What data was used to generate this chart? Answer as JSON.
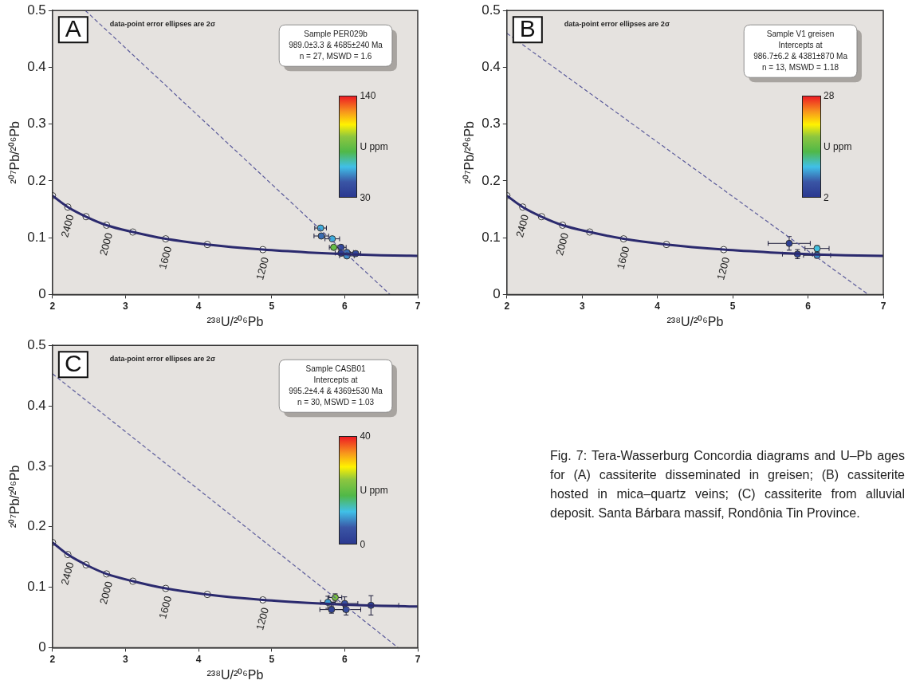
{
  "chart_data": [
    {
      "type": "scatter",
      "xlabel": "²³⁸U/²⁰⁶Pb",
      "ylabel": "²⁰⁷Pb/²⁰⁶Pb",
      "xlim": [
        2,
        7
      ],
      "ylim": [
        0,
        0.5
      ],
      "xticks": [
        2,
        3,
        4,
        5,
        6,
        7
      ],
      "yticks": [
        0,
        0.1,
        0.2,
        0.3,
        0.4,
        0.5
      ],
      "grid": false,
      "legend": false,
      "clabel": "U ppm",
      "annotations": [
        "A",
        "data-point error ellipses are 2σ",
        "Sample PER029b",
        "989.0±3.3 & 4685±240 Ma",
        "n = 27, MSWD = 1.6",
        "140",
        "30",
        {
          "text": "2400",
          "x": 2.21,
          "y": 0.154
        },
        {
          "text": "2000",
          "x": 2.74,
          "y": 0.122
        },
        {
          "text": "1600",
          "x": 3.55,
          "y": 0.098
        },
        {
          "text": "1200",
          "x": 4.88,
          "y": 0.079
        }
      ],
      "series": [
        {
          "type": "line",
          "color": "#2b2a6e",
          "marker": "none",
          "line_style": "solid",
          "x": [
            2,
            2.21,
            2.46,
            2.74,
            3.1,
            3.55,
            4.12,
            4.88,
            5.5,
            6,
            6.5,
            7
          ],
          "values": [
            0.174,
            0.154,
            0.137,
            0.122,
            0.11,
            0.098,
            0.088,
            0.079,
            0.074,
            0.071,
            0.069,
            0.068
          ]
        },
        {
          "type": "line",
          "color": "#5a5a9a",
          "marker": "none",
          "line_style": "dashed",
          "x": [
            2.45,
            6.62
          ],
          "values": [
            0.5,
            0
          ]
        },
        {
          "type": "scatter",
          "marker": "circle",
          "x": [
            5.67,
            5.68,
            5.83,
            5.85,
            5.95,
            5.95,
            6.03,
            6.15,
            6.03
          ],
          "values": [
            0.117,
            0.103,
            0.098,
            0.083,
            0.083,
            0.073,
            0.074,
            0.072,
            0.068
          ],
          "xerrors": [
            0.08,
            0.1,
            0.1,
            0.06,
            0.07,
            0.08,
            0.09,
            0.07,
            0.1
          ],
          "colors": [
            "#3faddc",
            "#3b6cb3",
            "#3faddc",
            "#64bd45",
            "#32479a",
            "#2d3c93",
            "#3b6cb3",
            "#344a9d",
            "#3d8cc7"
          ]
        },
        {
          "type": "scatter",
          "color": "#ffffff",
          "marker": "circle",
          "x": [
            2,
            2.21,
            2.46,
            2.74,
            3.1,
            3.55,
            4.12,
            4.88
          ],
          "values": [
            0.174,
            0.154,
            0.137,
            0.122,
            0.11,
            0.098,
            0.088,
            0.079
          ]
        }
      ]
    },
    {
      "type": "scatter",
      "xlabel": "²³⁸U/²⁰⁶Pb",
      "ylabel": "²⁰⁷Pb/²⁰⁶Pb",
      "xlim": [
        2,
        7
      ],
      "ylim": [
        0,
        0.5
      ],
      "xticks": [
        2,
        3,
        4,
        5,
        6,
        7
      ],
      "yticks": [
        0,
        0.1,
        0.2,
        0.3,
        0.4,
        0.5
      ],
      "grid": false,
      "legend": false,
      "clabel": "U ppm",
      "annotations": [
        "B",
        "data-point error ellipses are 2σ",
        "Sample V1 greisen",
        "Intercepts at",
        "986.7±6.2 & 4381±870 Ma",
        "n = 13, MSWD = 1.18",
        "28",
        "2",
        {
          "text": "2400",
          "x": 2.21,
          "y": 0.154
        },
        {
          "text": "2000",
          "x": 2.74,
          "y": 0.122
        },
        {
          "text": "1600",
          "x": 3.55,
          "y": 0.098
        },
        {
          "text": "1200",
          "x": 4.88,
          "y": 0.079
        }
      ],
      "series": [
        {
          "type": "line",
          "color": "#2b2a6e",
          "marker": "none",
          "line_style": "solid",
          "x": [
            2,
            2.21,
            2.46,
            2.74,
            3.1,
            3.55,
            4.12,
            4.88,
            5.5,
            6,
            6.5,
            7
          ],
          "values": [
            0.174,
            0.154,
            0.137,
            0.122,
            0.11,
            0.098,
            0.088,
            0.079,
            0.074,
            0.071,
            0.069,
            0.068
          ]
        },
        {
          "type": "line",
          "color": "#5a5a9a",
          "marker": "none",
          "line_style": "dashed",
          "x": [
            2,
            6.8
          ],
          "values": [
            0.46,
            0
          ]
        },
        {
          "type": "scatter",
          "marker": "circle",
          "x": [
            5.75,
            5.86,
            6.12,
            6.12
          ],
          "values": [
            0.09,
            0.071,
            0.081,
            0.069
          ],
          "xerrors": [
            0.28,
            0.2,
            0.16,
            0.18
          ],
          "errors": [
            0.012,
            0.008,
            0.005,
            0.005
          ],
          "colors": [
            "#2f4095",
            "#2f4095",
            "#41c0e0",
            "#3d8fc9"
          ]
        },
        {
          "type": "scatter",
          "color": "#ffffff",
          "marker": "circle",
          "x": [
            2,
            2.21,
            2.46,
            2.74,
            3.1,
            3.55,
            4.12,
            4.88
          ],
          "values": [
            0.174,
            0.154,
            0.137,
            0.122,
            0.11,
            0.098,
            0.088,
            0.079
          ]
        }
      ]
    },
    {
      "type": "scatter",
      "xlabel": "²³⁸U/²⁰⁶Pb",
      "ylabel": "²⁰⁷Pb/²⁰⁶Pb",
      "xlim": [
        2,
        7
      ],
      "ylim": [
        0,
        0.5
      ],
      "xticks": [
        2,
        3,
        4,
        5,
        6,
        7
      ],
      "yticks": [
        0,
        0.1,
        0.2,
        0.3,
        0.4,
        0.5
      ],
      "grid": false,
      "legend": false,
      "clabel": "U ppm",
      "annotations": [
        "C",
        "data-point error ellipses are 2σ",
        "Sample CASB01",
        "Intercepts at",
        "995.2±4.4 & 4369±530 Ma",
        "n = 30, MSWD = 1.03",
        "40",
        "0",
        {
          "text": "2400",
          "x": 2.21,
          "y": 0.154
        },
        {
          "text": "2000",
          "x": 2.74,
          "y": 0.122
        },
        {
          "text": "1600",
          "x": 3.55,
          "y": 0.098
        },
        {
          "text": "1200",
          "x": 4.88,
          "y": 0.079
        }
      ],
      "series": [
        {
          "type": "line",
          "color": "#2b2a6e",
          "marker": "none",
          "line_style": "solid",
          "x": [
            2,
            2.21,
            2.46,
            2.74,
            3.1,
            3.55,
            4.12,
            4.88,
            5.5,
            6,
            6.5,
            7
          ],
          "values": [
            0.174,
            0.154,
            0.137,
            0.122,
            0.11,
            0.098,
            0.088,
            0.079,
            0.074,
            0.071,
            0.069,
            0.068
          ]
        },
        {
          "type": "line",
          "color": "#5a5a9a",
          "marker": "none",
          "line_style": "dashed",
          "x": [
            2,
            6.73
          ],
          "values": [
            0.453,
            0
          ]
        },
        {
          "type": "scatter",
          "marker": "circle",
          "x": [
            6.36,
            6.0,
            6.02,
            5.82,
            5.77,
            5.87
          ],
          "values": [
            0.07,
            0.073,
            0.063,
            0.063,
            0.075,
            0.083
          ],
          "xerrors": [
            0.38,
            0.18,
            0.2,
            0.16,
            0.1,
            0.09
          ],
          "errors": [
            0.016,
            0.011,
            0.009,
            0.006,
            0.01,
            0.006
          ],
          "colors": [
            "#304297",
            "#3750a1",
            "#354c9e",
            "#304297",
            "#3e9cd2",
            "#79c142"
          ]
        },
        {
          "type": "scatter",
          "color": "#ffffff",
          "marker": "circle",
          "x": [
            2,
            2.21,
            2.46,
            2.74,
            3.1,
            3.55,
            4.12,
            4.88
          ],
          "values": [
            0.174,
            0.154,
            0.137,
            0.122,
            0.11,
            0.098,
            0.088,
            0.079
          ]
        }
      ]
    },
    {
      "type": "other",
      "annotations": [
        "Fig. 7: Tera-Wasserburg Concordia diagrams and U–Pb ages for (A) cassiterite disseminated in greisen; (B) cassiterite hosted in mica–quartz veins; (C) cassiterite from alluvial deposit. Santa Bárbara massif, Rondônia Tin Province."
      ]
    }
  ]
}
